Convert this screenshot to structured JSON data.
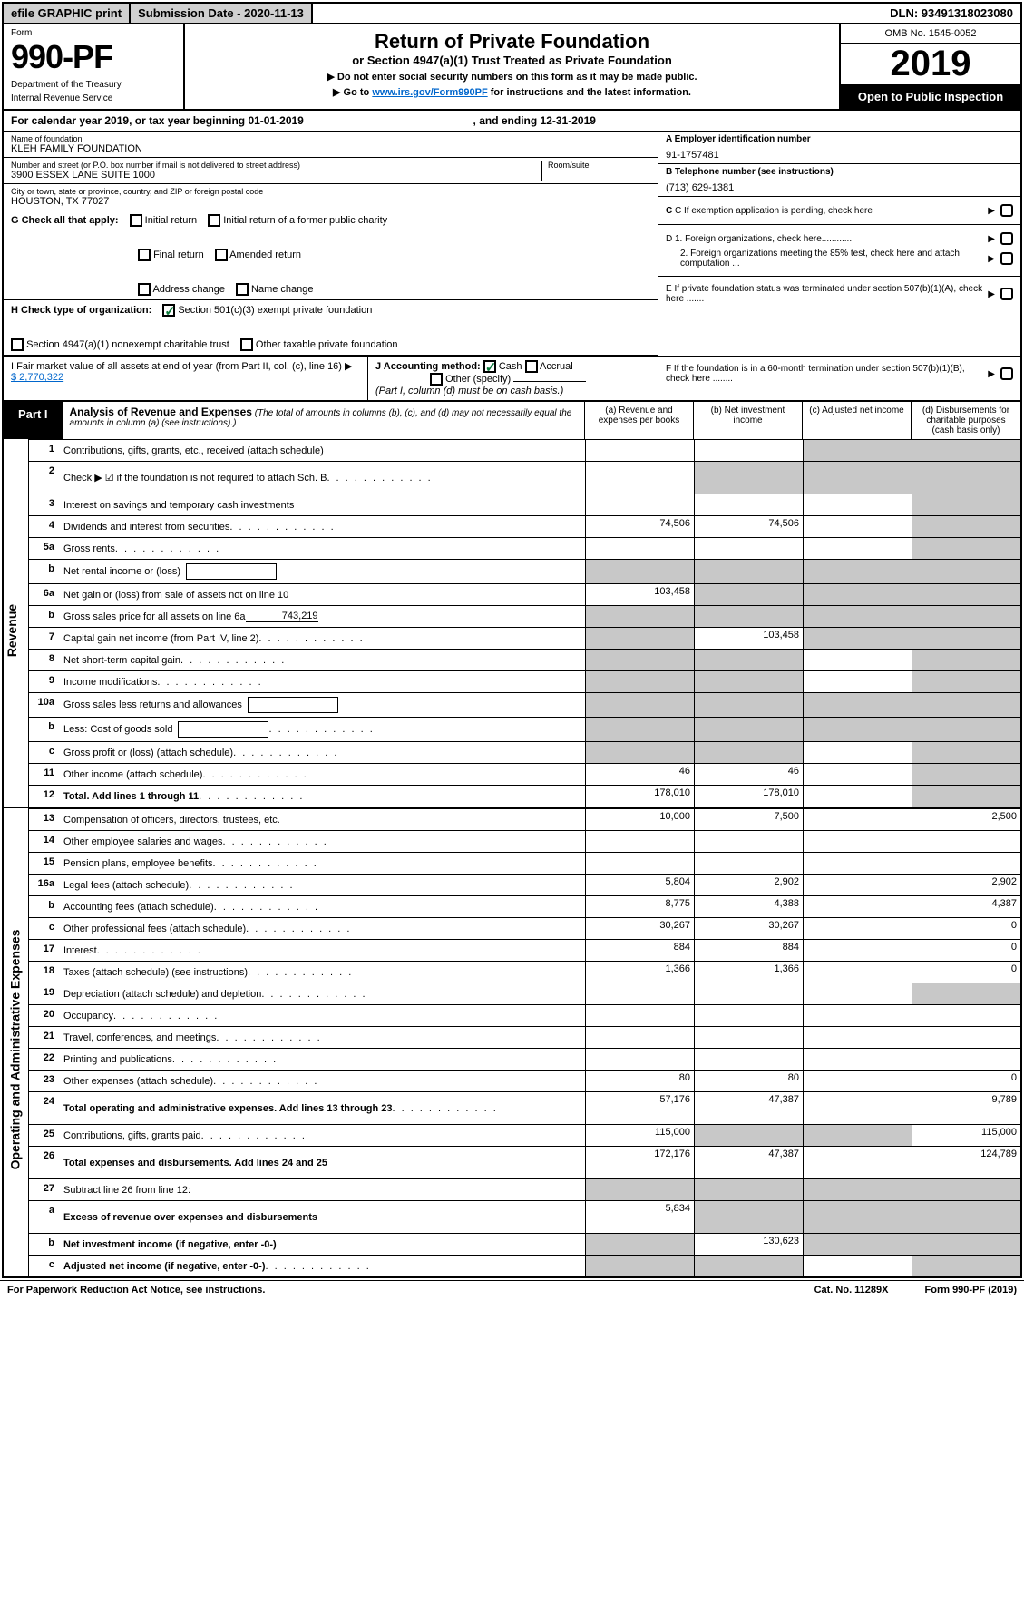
{
  "top": {
    "efile": "efile GRAPHIC print",
    "submission": "Submission Date - 2020-11-13",
    "dln": "DLN: 93491318023080"
  },
  "header": {
    "form_label": "Form",
    "form_number": "990-PF",
    "dept1": "Department of the Treasury",
    "dept2": "Internal Revenue Service",
    "title": "Return of Private Foundation",
    "subtitle": "or Section 4947(a)(1) Trust Treated as Private Foundation",
    "note1": "▶ Do not enter social security numbers on this form as it may be made public.",
    "note2_pre": "▶ Go to ",
    "note2_link": "www.irs.gov/Form990PF",
    "note2_post": " for instructions and the latest information.",
    "omb": "OMB No. 1545-0052",
    "year": "2019",
    "open": "Open to Public Inspection"
  },
  "cal_year": {
    "pre": "For calendar year 2019, or tax year beginning ",
    "begin": "01-01-2019",
    "mid": ", and ending ",
    "end": "12-31-2019"
  },
  "info": {
    "name_lbl": "Name of foundation",
    "name": "KLEH FAMILY FOUNDATION",
    "addr_lbl": "Number and street (or P.O. box number if mail is not delivered to street address)",
    "addr": "3900 ESSEX LANE SUITE 1000",
    "room_lbl": "Room/suite",
    "city_lbl": "City or town, state or province, country, and ZIP or foreign postal code",
    "city": "HOUSTON, TX  77027",
    "ein_lbl": "A Employer identification number",
    "ein": "91-1757481",
    "tel_lbl": "B Telephone number (see instructions)",
    "tel": "(713) 629-1381",
    "c_lbl": "C If exemption application is pending, check here",
    "d1": "D 1. Foreign organizations, check here.............",
    "d2": "2. Foreign organizations meeting the 85% test, check here and attach computation ...",
    "e": "E  If private foundation status was terminated under section 507(b)(1)(A), check here .......",
    "f": "F  If the foundation is in a 60-month termination under section 507(b)(1)(B), check here ........"
  },
  "g": {
    "label": "G Check all that apply:",
    "opts": [
      "Initial return",
      "Initial return of a former public charity",
      "Final return",
      "Amended return",
      "Address change",
      "Name change"
    ]
  },
  "h": {
    "label": "H Check type of organization:",
    "opt1": "Section 501(c)(3) exempt private foundation",
    "opt2": "Section 4947(a)(1) nonexempt charitable trust",
    "opt3": "Other taxable private foundation"
  },
  "i": {
    "label": "I Fair market value of all assets at end of year (from Part II, col. (c), line 16) ▶",
    "amount": "$  2,770,322"
  },
  "j": {
    "label": "J Accounting method:",
    "cash": "Cash",
    "accrual": "Accrual",
    "other": "Other (specify)",
    "note": "(Part I, column (d) must be on cash basis.)"
  },
  "part1": {
    "label": "Part I",
    "title": "Analysis of Revenue and Expenses",
    "note": "(The total of amounts in columns (b), (c), and (d) may not necessarily equal the amounts in column (a) (see instructions).)",
    "col_a": "(a)    Revenue and expenses per books",
    "col_b": "(b)   Net investment income",
    "col_c": "(c)   Adjusted net income",
    "col_d": "(d)   Disbursements for charitable purposes (cash basis only)"
  },
  "side": {
    "revenue": "Revenue",
    "expenses": "Operating and Administrative Expenses"
  },
  "rows": [
    {
      "n": "1",
      "d": "Contributions, gifts, grants, etc., received (attach schedule)",
      "a": "",
      "b": "",
      "c": "s",
      "ds": "s"
    },
    {
      "n": "2",
      "d": "Check ▶ ☑ if the foundation is not required to attach Sch. B",
      "a": "",
      "b": "s",
      "c": "s",
      "ds": "s",
      "tall": true,
      "dots": true
    },
    {
      "n": "3",
      "d": "Interest on savings and temporary cash investments",
      "a": "",
      "b": "",
      "c": "",
      "ds": "s"
    },
    {
      "n": "4",
      "d": "Dividends and interest from securities",
      "a": "74,506",
      "b": "74,506",
      "c": "",
      "ds": "s",
      "dots": true
    },
    {
      "n": "5a",
      "d": "Gross rents",
      "a": "",
      "b": "",
      "c": "",
      "ds": "s",
      "dots": true
    },
    {
      "n": "b",
      "d": "Net rental income or (loss)",
      "a": "s",
      "b": "s",
      "c": "s",
      "ds": "s",
      "inline": true
    },
    {
      "n": "6a",
      "d": "Net gain or (loss) from sale of assets not on line 10",
      "a": "103,458",
      "b": "s",
      "c": "s",
      "ds": "s"
    },
    {
      "n": "b",
      "d": "Gross sales price for all assets on line 6a",
      "a": "s",
      "b": "s",
      "c": "s",
      "ds": "s",
      "under": "743,219"
    },
    {
      "n": "7",
      "d": "Capital gain net income (from Part IV, line 2)",
      "a": "s",
      "b": "103,458",
      "c": "s",
      "ds": "s",
      "dots": true
    },
    {
      "n": "8",
      "d": "Net short-term capital gain",
      "a": "s",
      "b": "s",
      "c": "",
      "ds": "s",
      "dots": true
    },
    {
      "n": "9",
      "d": "Income modifications",
      "a": "s",
      "b": "s",
      "c": "",
      "ds": "s",
      "dots": true
    },
    {
      "n": "10a",
      "d": "Gross sales less returns and allowances",
      "a": "s",
      "b": "s",
      "c": "s",
      "ds": "s",
      "inline": true
    },
    {
      "n": "b",
      "d": "Less: Cost of goods sold",
      "a": "s",
      "b": "s",
      "c": "s",
      "ds": "s",
      "inline": true,
      "dots": true
    },
    {
      "n": "c",
      "d": "Gross profit or (loss) (attach schedule)",
      "a": "s",
      "b": "s",
      "c": "",
      "ds": "s",
      "dots": true
    },
    {
      "n": "11",
      "d": "Other income (attach schedule)",
      "a": "46",
      "b": "46",
      "c": "",
      "ds": "s",
      "dots": true
    },
    {
      "n": "12",
      "d": "Total. Add lines 1 through 11",
      "a": "178,010",
      "b": "178,010",
      "c": "",
      "ds": "s",
      "bold": true,
      "dots": true
    }
  ],
  "exp_rows": [
    {
      "n": "13",
      "d": "Compensation of officers, directors, trustees, etc.",
      "a": "10,000",
      "b": "7,500",
      "c": "",
      "ds": "2,500"
    },
    {
      "n": "14",
      "d": "Other employee salaries and wages",
      "a": "",
      "b": "",
      "c": "",
      "ds": "",
      "dots": true
    },
    {
      "n": "15",
      "d": "Pension plans, employee benefits",
      "a": "",
      "b": "",
      "c": "",
      "ds": "",
      "dots": true
    },
    {
      "n": "16a",
      "d": "Legal fees (attach schedule)",
      "a": "5,804",
      "b": "2,902",
      "c": "",
      "ds": "2,902",
      "dots": true
    },
    {
      "n": "b",
      "d": "Accounting fees (attach schedule)",
      "a": "8,775",
      "b": "4,388",
      "c": "",
      "ds": "4,387",
      "dots": true
    },
    {
      "n": "c",
      "d": "Other professional fees (attach schedule)",
      "a": "30,267",
      "b": "30,267",
      "c": "",
      "ds": "0",
      "dots": true
    },
    {
      "n": "17",
      "d": "Interest",
      "a": "884",
      "b": "884",
      "c": "",
      "ds": "0",
      "dots": true
    },
    {
      "n": "18",
      "d": "Taxes (attach schedule) (see instructions)",
      "a": "1,366",
      "b": "1,366",
      "c": "",
      "ds": "0",
      "dots": true
    },
    {
      "n": "19",
      "d": "Depreciation (attach schedule) and depletion",
      "a": "",
      "b": "",
      "c": "",
      "ds": "s",
      "dots": true
    },
    {
      "n": "20",
      "d": "Occupancy",
      "a": "",
      "b": "",
      "c": "",
      "ds": "",
      "dots": true
    },
    {
      "n": "21",
      "d": "Travel, conferences, and meetings",
      "a": "",
      "b": "",
      "c": "",
      "ds": "",
      "dots": true
    },
    {
      "n": "22",
      "d": "Printing and publications",
      "a": "",
      "b": "",
      "c": "",
      "ds": "",
      "dots": true
    },
    {
      "n": "23",
      "d": "Other expenses (attach schedule)",
      "a": "80",
      "b": "80",
      "c": "",
      "ds": "0",
      "dots": true
    },
    {
      "n": "24",
      "d": "Total operating and administrative expenses. Add lines 13 through 23",
      "a": "57,176",
      "b": "47,387",
      "c": "",
      "ds": "9,789",
      "bold": true,
      "tall": true,
      "dots": true
    },
    {
      "n": "25",
      "d": "Contributions, gifts, grants paid",
      "a": "115,000",
      "b": "s",
      "c": "s",
      "ds": "115,000",
      "dots": true
    },
    {
      "n": "26",
      "d": "Total expenses and disbursements. Add lines 24 and 25",
      "a": "172,176",
      "b": "47,387",
      "c": "",
      "ds": "124,789",
      "bold": true,
      "tall": true
    },
    {
      "n": "27",
      "d": "Subtract line 26 from line 12:",
      "a": "s",
      "b": "s",
      "c": "s",
      "ds": "s"
    },
    {
      "n": "a",
      "d": "Excess of revenue over expenses and disbursements",
      "a": "5,834",
      "b": "s",
      "c": "s",
      "ds": "s",
      "bold": true,
      "tall": true
    },
    {
      "n": "b",
      "d": "Net investment income (if negative, enter -0-)",
      "a": "s",
      "b": "130,623",
      "c": "s",
      "ds": "s",
      "bold": true
    },
    {
      "n": "c",
      "d": "Adjusted net income (if negative, enter -0-)",
      "a": "s",
      "b": "s",
      "c": "",
      "ds": "s",
      "bold": true,
      "dots": true
    }
  ],
  "footer": {
    "left": "For Paperwork Reduction Act Notice, see instructions.",
    "mid": "Cat. No. 11289X",
    "right": "Form 990-PF (2019)"
  },
  "colors": {
    "link": "#0066cc",
    "check": "#0a7a3a",
    "shade": "#c8c8c8",
    "btn_bg": "#d0d0d0"
  }
}
